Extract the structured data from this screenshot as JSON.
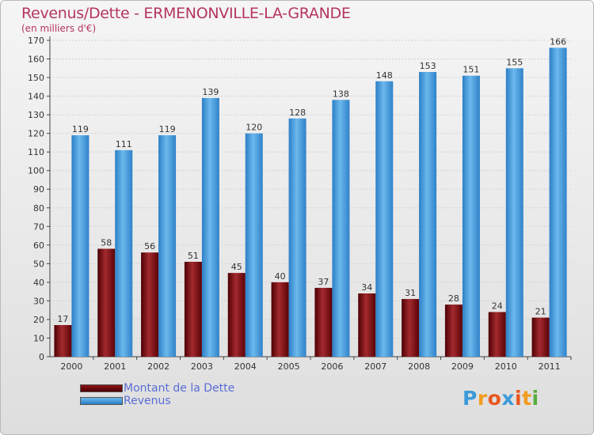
{
  "header": {
    "title": "Revenus/Dette - ERMENONVILLE-LA-GRANDE",
    "subtitle": "(en milliers d'€)"
  },
  "logo": {
    "text": "Proxiti",
    "letters": [
      {
        "ch": "P",
        "color": "#3c9ad8"
      },
      {
        "ch": "r",
        "color": "#f39c1e"
      },
      {
        "ch": "o",
        "color": "#e8571f"
      },
      {
        "ch": "x",
        "color": "#3c9ad8"
      },
      {
        "ch": "i",
        "color": "#e8571f"
      },
      {
        "ch": "t",
        "color": "#f39c1e"
      },
      {
        "ch": "i",
        "color": "#56ad3c"
      }
    ]
  },
  "chart_data": {
    "type": "bar",
    "title": "Revenus/Dette - ERMENONVILLE-LA-GRANDE",
    "subtitle": "(en milliers d'€)",
    "xlabel": "",
    "ylabel": "",
    "ylim": [
      0,
      170
    ],
    "ytick_step": 10,
    "grid": true,
    "legend_position": "bottom-left",
    "categories": [
      "2000",
      "2001",
      "2002",
      "2003",
      "2004",
      "2005",
      "2006",
      "2007",
      "2008",
      "2009",
      "2010",
      "2011"
    ],
    "series": [
      {
        "name": "Montant de la Dette",
        "color": "#7a0a0e",
        "values": [
          17,
          58,
          56,
          51,
          45,
          40,
          37,
          34,
          31,
          28,
          24,
          21
        ]
      },
      {
        "name": "Revenus",
        "color": "#4a9fe0",
        "values": [
          119,
          111,
          119,
          139,
          120,
          128,
          138,
          148,
          153,
          151,
          155,
          166
        ]
      }
    ]
  }
}
